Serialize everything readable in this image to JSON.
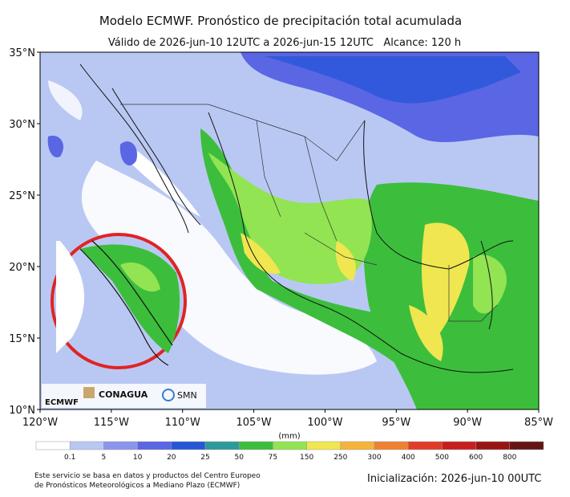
{
  "title": "Modelo ECMWF. Pronóstico de precipitación total acumulada",
  "subtitle": "Válido de 2026-jun-10 12UTC a 2026-jun-15 12UTC   Alcance: 120 h",
  "lat_labels": [
    "35°N",
    "30°N",
    "25°N",
    "20°N",
    "15°N",
    "10°N"
  ],
  "lon_labels": [
    "120°W",
    "115°W",
    "110°W",
    "105°W",
    "100°W",
    "95°W",
    "90°W",
    "85°W"
  ],
  "colorbar": {
    "unit": "(mm)",
    "ticks": [
      0.1,
      5,
      10,
      20,
      25,
      50,
      75,
      150,
      250,
      300,
      400,
      500,
      600,
      800
    ],
    "colors": [
      "#ffffff",
      "#b9c8f3",
      "#8a95ee",
      "#5a66e4",
      "#2856d8",
      "#2c9a9a",
      "#3cbe3c",
      "#92e452",
      "#f0e650",
      "#f4b43c",
      "#ee8232",
      "#e23c28",
      "#c81e1e",
      "#9a1414",
      "#641414"
    ]
  },
  "logos": {
    "ecmwf": "ECMWF",
    "conagua": "CONAGUA",
    "smn": "SMN"
  },
  "footer": {
    "note": [
      "Este servicio se basa en datos y productos del Centro Europeo",
      "de Pronósticos Meteorológicos a Mediano Plazo (ECMWF)"
    ],
    "init": "Inicialización: 2026-jun-10 00UTC"
  }
}
